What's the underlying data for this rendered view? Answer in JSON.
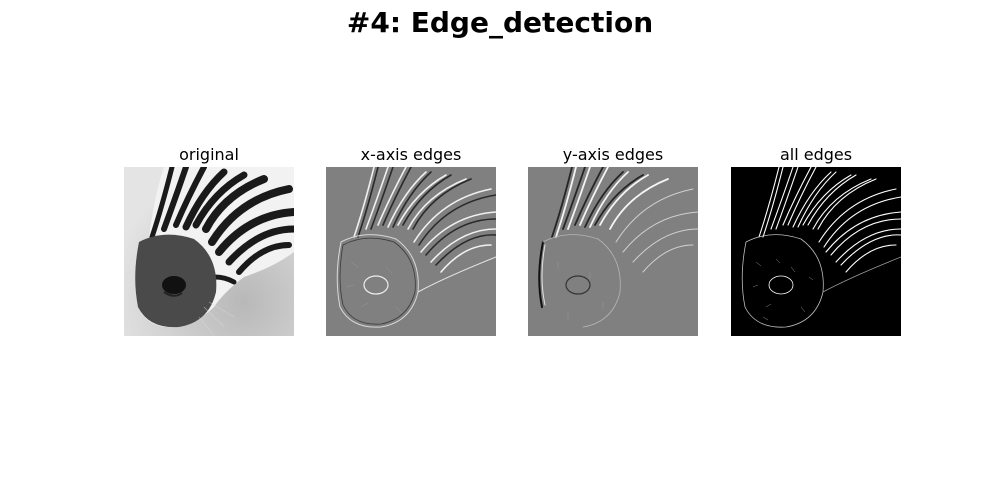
{
  "figure": {
    "title": "#4: Edge_detection"
  },
  "panels": [
    {
      "title": "original",
      "background": "#c9c9c9",
      "stripe": "#1a1a1a",
      "muzzle": "#4a4a4a"
    },
    {
      "title": "x-axis edges",
      "background": "#7f7f7f",
      "stripe": "#ffffff",
      "muzzle": "#2a2a2a"
    },
    {
      "title": "y-axis edges",
      "background": "#7f7f7f",
      "stripe": "#ffffff",
      "muzzle": "#2a2a2a"
    },
    {
      "title": "all edges",
      "background": "#000000",
      "stripe": "#ffffff",
      "muzzle": "#9a9a9a"
    }
  ]
}
